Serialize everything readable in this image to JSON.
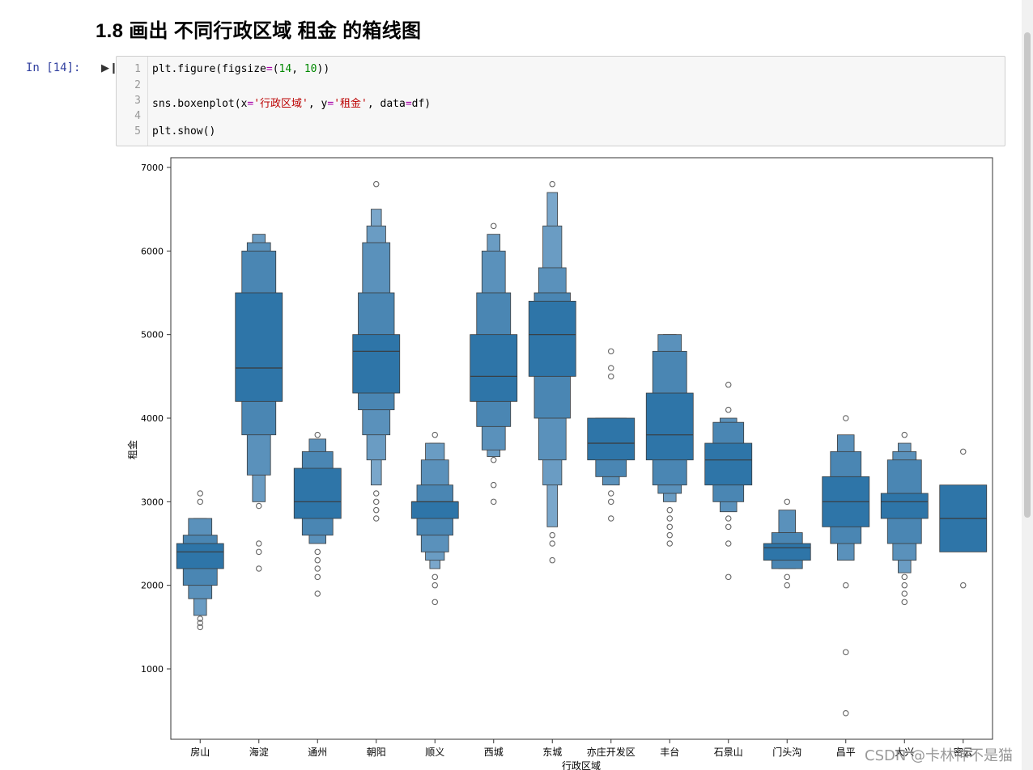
{
  "heading": "1.8  画出 不同行政区域 租金 的箱线图",
  "cell": {
    "prompt": "In  [14]:",
    "line_numbers": [
      "1",
      "2",
      "3",
      "4",
      "5"
    ],
    "lines": [
      [
        "plt.figure(figsize",
        "=",
        "(",
        "14",
        ", ",
        "10",
        "))"
      ],
      [],
      [
        "sns.boxenplot(x",
        "=",
        "'行政区域'",
        ", y",
        "=",
        "'租金'",
        ", data",
        "=",
        "df)"
      ],
      [],
      [
        "plt.show()"
      ]
    ]
  },
  "watermark": "CSDN @卡林神不是猫",
  "chart_data": {
    "type": "boxenplot",
    "xlabel": "行政区域",
    "ylabel": "租金",
    "ylim": [
      100,
      7100
    ],
    "yticks": [
      1000,
      2000,
      3000,
      4000,
      5000,
      6000,
      7000
    ],
    "colors": {
      "box": "#2e75a8",
      "edge": "#3a3a3a",
      "outlier": "#666666"
    },
    "categories": [
      "房山",
      "海淀",
      "通州",
      "朝阳",
      "顺义",
      "西城",
      "东城",
      "亦庄开发区",
      "丰台",
      "石景山",
      "门头沟",
      "昌平",
      "大兴",
      "密云"
    ],
    "series": [
      {
        "name": "房山",
        "median": 2400,
        "levels": [
          [
            2200,
            2500
          ],
          [
            2000,
            2600
          ],
          [
            1840,
            2800
          ],
          [
            1640,
            2800
          ]
        ],
        "outliers": [
          3100,
          3000,
          1600,
          1550,
          1500
        ]
      },
      {
        "name": "海淀",
        "median": 4600,
        "levels": [
          [
            4200,
            5500
          ],
          [
            3800,
            6000
          ],
          [
            3320,
            6100
          ],
          [
            3000,
            6200
          ]
        ],
        "outliers": [
          2950,
          2500,
          2400,
          2200
        ]
      },
      {
        "name": "通州",
        "median": 3000,
        "levels": [
          [
            2800,
            3400
          ],
          [
            2600,
            3600
          ],
          [
            2500,
            3750
          ]
        ],
        "outliers": [
          3800,
          2400,
          2300,
          2200,
          2100,
          1900
        ]
      },
      {
        "name": "朝阳",
        "median": 4800,
        "levels": [
          [
            4300,
            5000
          ],
          [
            4100,
            5500
          ],
          [
            3800,
            6100
          ],
          [
            3500,
            6300
          ],
          [
            3200,
            6500
          ]
        ],
        "outliers": [
          6800,
          3100,
          3000,
          2900,
          2800
        ]
      },
      {
        "name": "顺义",
        "median": 3000,
        "levels": [
          [
            2800,
            3000
          ],
          [
            2600,
            3200
          ],
          [
            2400,
            3500
          ],
          [
            2300,
            3700
          ],
          [
            2200,
            3700
          ]
        ],
        "outliers": [
          3800,
          2100,
          2000,
          1800
        ]
      },
      {
        "name": "西城",
        "median": 4500,
        "levels": [
          [
            4200,
            5000
          ],
          [
            3900,
            5500
          ],
          [
            3620,
            6000
          ],
          [
            3540,
            6200
          ]
        ],
        "outliers": [
          6300,
          3500,
          3200,
          3000
        ]
      },
      {
        "name": "东城",
        "median": 5000,
        "levels": [
          [
            4500,
            5400
          ],
          [
            4000,
            5500
          ],
          [
            3500,
            5800
          ],
          [
            3200,
            6300
          ],
          [
            2700,
            6700
          ]
        ],
        "outliers": [
          6800,
          2600,
          2500,
          2300
        ]
      },
      {
        "name": "亦庄开发区",
        "median": 3700,
        "levels": [
          [
            3500,
            4000
          ],
          [
            3300,
            4000
          ],
          [
            3200,
            4000
          ]
        ],
        "outliers": [
          4800,
          4600,
          4500,
          3100,
          3000,
          2800
        ]
      },
      {
        "name": "丰台",
        "median": 3800,
        "levels": [
          [
            3500,
            4300
          ],
          [
            3200,
            4800
          ],
          [
            3100,
            5000
          ],
          [
            3000,
            5000
          ]
        ],
        "outliers": [
          2900,
          2800,
          2700,
          2600,
          2500
        ]
      },
      {
        "name": "石景山",
        "median": 3500,
        "levels": [
          [
            3200,
            3700
          ],
          [
            3000,
            3950
          ],
          [
            2880,
            4000
          ]
        ],
        "outliers": [
          4400,
          4100,
          2800,
          2700,
          2500,
          2100
        ]
      },
      {
        "name": "门头沟",
        "median": 2450,
        "levels": [
          [
            2300,
            2500
          ],
          [
            2200,
            2630
          ],
          [
            2200,
            2900
          ]
        ],
        "outliers": [
          3000,
          2100,
          2000
        ]
      },
      {
        "name": "昌平",
        "median": 3000,
        "levels": [
          [
            2700,
            3300
          ],
          [
            2500,
            3600
          ],
          [
            2300,
            3800
          ]
        ],
        "outliers": [
          4000,
          2000,
          1200,
          470
        ]
      },
      {
        "name": "大兴",
        "median": 3000,
        "levels": [
          [
            2800,
            3100
          ],
          [
            2500,
            3500
          ],
          [
            2300,
            3600
          ],
          [
            2150,
            3700
          ]
        ],
        "outliers": [
          3800,
          2100,
          2000,
          1900,
          1800
        ]
      },
      {
        "name": "密云",
        "median": 2800,
        "levels": [
          [
            2400,
            3200
          ]
        ],
        "outliers": [
          3600,
          2000
        ]
      }
    ]
  }
}
